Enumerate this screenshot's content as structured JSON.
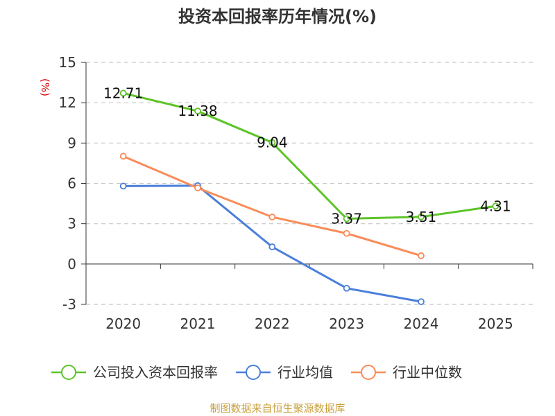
{
  "chart_data": {
    "type": "line",
    "title": "投资本回报率历年情况(%)",
    "ylabel": "(%)",
    "xlabel": "",
    "categories": [
      "2020",
      "2021",
      "2022",
      "2023",
      "2024",
      "2025"
    ],
    "ylim": [
      -3,
      15
    ],
    "yticks": [
      15,
      12,
      9,
      6,
      3,
      0,
      -3
    ],
    "grid": true,
    "legend": "bottom",
    "series": [
      {
        "name": "公司投入资本回报率",
        "color": "#5dc428",
        "values": [
          12.71,
          11.38,
          9.04,
          3.37,
          3.51,
          4.31
        ],
        "labels": [
          "12.71",
          "11.38",
          "9.04",
          "3.37",
          "3.51",
          "4.31"
        ]
      },
      {
        "name": "行业均值",
        "color": "#4a7fdb",
        "values": [
          5.8,
          5.83,
          1.28,
          -1.8,
          -2.8,
          null
        ],
        "labels": []
      },
      {
        "name": "行业中位数",
        "color": "#fa8c58",
        "values": [
          8.02,
          5.66,
          3.5,
          2.28,
          0.62,
          null
        ],
        "labels": []
      }
    ]
  },
  "source": "制图数据来自恒生聚源数据库"
}
